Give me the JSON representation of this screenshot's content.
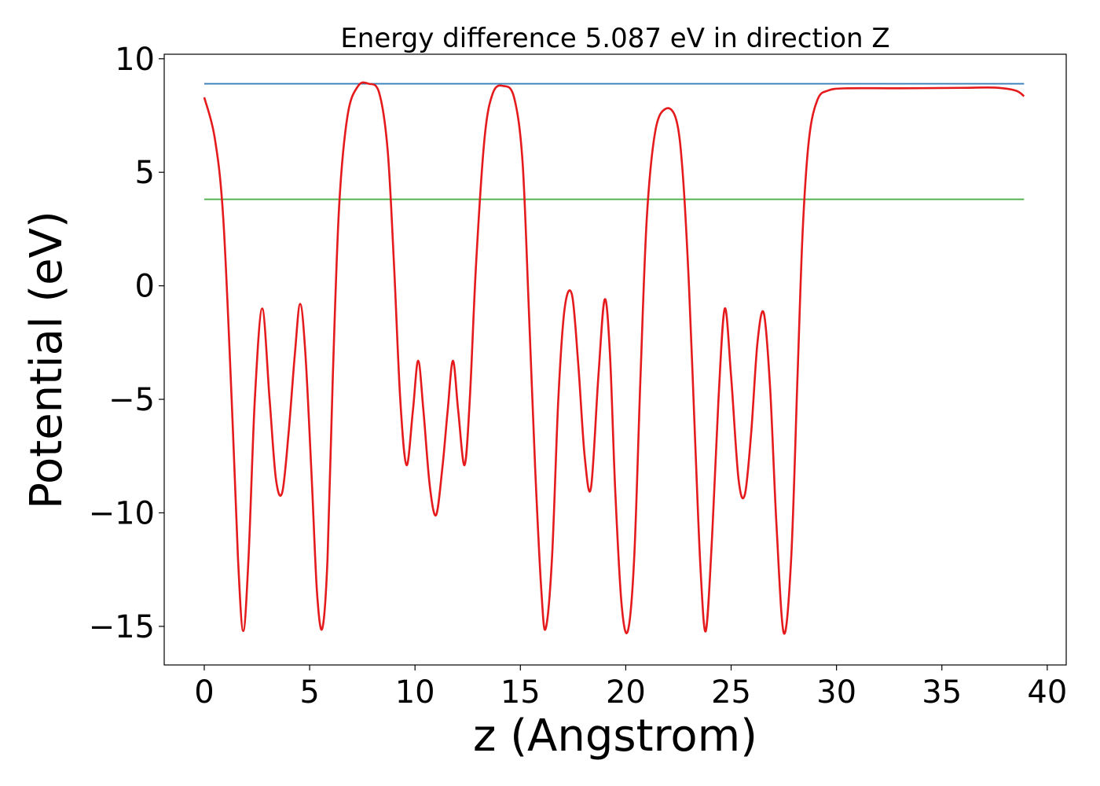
{
  "chart_data": {
    "type": "line",
    "title": "Energy difference 5.087 eV in direction Z",
    "xlabel": "z (Angstrom)",
    "ylabel": "Potential (eV)",
    "xlim": [
      -1.9,
      40.9
    ],
    "ylim": [
      -16.7,
      10.2
    ],
    "xticks": [
      0,
      5,
      10,
      15,
      20,
      25,
      30,
      35,
      40
    ],
    "xtick_labels": [
      "0",
      "5",
      "10",
      "15",
      "20",
      "25",
      "30",
      "35",
      "40"
    ],
    "yticks": [
      -15,
      -10,
      -5,
      0,
      5,
      10
    ],
    "ytick_labels": [
      "−15",
      "−10",
      "−5",
      "0",
      "5",
      "10"
    ],
    "grid": false,
    "series": [
      {
        "color": "#e41a1c",
        "x": [
          0,
          0.5,
          0.9,
          1.3,
          1.6,
          1.85,
          2.1,
          2.4,
          2.75,
          3.1,
          3.4,
          3.7,
          4.0,
          4.3,
          4.55,
          4.8,
          5.1,
          5.35,
          5.6,
          5.85,
          6.1,
          6.4,
          6.8,
          7.3,
          7.8,
          8.3,
          8.7,
          9.0,
          9.3,
          9.6,
          9.9,
          10.15,
          10.4,
          10.7,
          11.0,
          11.3,
          11.55,
          11.8,
          12.05,
          12.35,
          12.6,
          12.9,
          13.3,
          13.7,
          14.2,
          14.7,
          15.1,
          15.4,
          15.7,
          16.0,
          16.2,
          16.5,
          16.8,
          17.1,
          17.45,
          17.75,
          18.05,
          18.35,
          18.7,
          19.0,
          19.25,
          19.5,
          19.8,
          20.1,
          20.4,
          20.7,
          21.0,
          21.4,
          21.9,
          22.4,
          22.7,
          23.0,
          23.3,
          23.55,
          23.8,
          24.1,
          24.4,
          24.7,
          25.0,
          25.35,
          25.65,
          25.95,
          26.25,
          26.55,
          26.85,
          27.15,
          27.5,
          27.85,
          28.15,
          28.4,
          28.7,
          29.1,
          29.6,
          30.5,
          33,
          36,
          37.5,
          38.5,
          38.9
        ],
        "y": [
          8.3,
          6.5,
          3.0,
          -5.0,
          -12.0,
          -15.2,
          -12.0,
          -5.0,
          -1.0,
          -5.0,
          -8.5,
          -9.1,
          -6.5,
          -3.0,
          -0.8,
          -3.0,
          -8.5,
          -13.5,
          -15.1,
          -12.0,
          -4.0,
          3.5,
          7.5,
          8.8,
          8.9,
          8.5,
          6.0,
          1.0,
          -5.0,
          -7.9,
          -5.5,
          -3.3,
          -5.5,
          -8.8,
          -10.1,
          -8.0,
          -5.5,
          -3.3,
          -5.5,
          -7.9,
          -5.0,
          1.0,
          6.5,
          8.5,
          8.8,
          8.3,
          5.5,
          -1.0,
          -8.0,
          -13.5,
          -15.1,
          -12.0,
          -5.0,
          -1.0,
          -0.4,
          -3.5,
          -7.5,
          -8.9,
          -4.0,
          -0.6,
          -3.0,
          -9.0,
          -14.0,
          -15.2,
          -12.0,
          -4.0,
          3.0,
          6.8,
          7.8,
          7.3,
          5.0,
          0.0,
          -7.0,
          -12.5,
          -15.2,
          -11.0,
          -5.0,
          -1.0,
          -4.0,
          -8.5,
          -9.2,
          -6.5,
          -2.5,
          -1.2,
          -4.5,
          -10.5,
          -15.3,
          -12.0,
          -4.0,
          2.5,
          6.5,
          8.2,
          8.6,
          8.7,
          8.7,
          8.72,
          8.73,
          8.6,
          8.35
        ]
      },
      {
        "color": "#377eb8",
        "x": [
          0,
          38.9
        ],
        "y": [
          8.9,
          8.9
        ]
      },
      {
        "color": "#4daf4a",
        "x": [
          0,
          38.9
        ],
        "y": [
          3.81,
          3.81
        ]
      }
    ]
  }
}
